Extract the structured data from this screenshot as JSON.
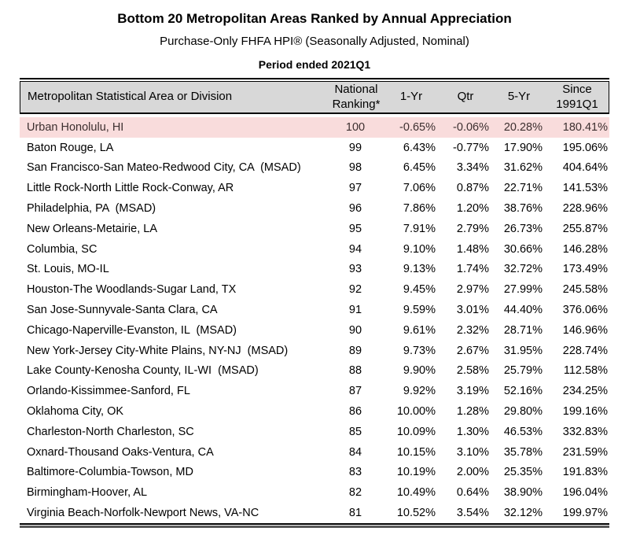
{
  "header": {
    "title": "Bottom 20 Metropolitan Areas Ranked by Annual Appreciation",
    "subtitle": "Purchase-Only FHFA HPI® (Seasonally Adjusted, Nominal)",
    "period": "Period ended 2021Q1"
  },
  "colors": {
    "highlight_bg": "#f9dcdc",
    "header_bg": "#d8d8d8"
  },
  "table": {
    "headers": [
      "Metropolitan Statistical Area or Division",
      "National\nRanking*",
      "1-Yr",
      "Qtr",
      "5-Yr",
      "Since\n1991Q1"
    ],
    "rows": [
      {
        "area": "Urban Honolulu, HI",
        "rank": "100",
        "yr1": "-0.65%",
        "qtr": "-0.06%",
        "yr5": "20.28%",
        "since": "180.41%",
        "highlight": true
      },
      {
        "area": "Baton Rouge, LA",
        "rank": "99",
        "yr1": "6.43%",
        "qtr": "-0.77%",
        "yr5": "17.90%",
        "since": "195.06%",
        "highlight": false
      },
      {
        "area": "San Francisco-San Mateo-Redwood City, CA  (MSAD)",
        "rank": "98",
        "yr1": "6.45%",
        "qtr": "3.34%",
        "yr5": "31.62%",
        "since": "404.64%",
        "highlight": false
      },
      {
        "area": "Little Rock-North Little Rock-Conway, AR",
        "rank": "97",
        "yr1": "7.06%",
        "qtr": "0.87%",
        "yr5": "22.71%",
        "since": "141.53%",
        "highlight": false
      },
      {
        "area": "Philadelphia, PA  (MSAD)",
        "rank": "96",
        "yr1": "7.86%",
        "qtr": "1.20%",
        "yr5": "38.76%",
        "since": "228.96%",
        "highlight": false
      },
      {
        "area": "New Orleans-Metairie, LA",
        "rank": "95",
        "yr1": "7.91%",
        "qtr": "2.79%",
        "yr5": "26.73%",
        "since": "255.87%",
        "highlight": false
      },
      {
        "area": "Columbia, SC",
        "rank": "94",
        "yr1": "9.10%",
        "qtr": "1.48%",
        "yr5": "30.66%",
        "since": "146.28%",
        "highlight": false
      },
      {
        "area": "St. Louis, MO-IL",
        "rank": "93",
        "yr1": "9.13%",
        "qtr": "1.74%",
        "yr5": "32.72%",
        "since": "173.49%",
        "highlight": false
      },
      {
        "area": "Houston-The Woodlands-Sugar Land, TX",
        "rank": "92",
        "yr1": "9.45%",
        "qtr": "2.97%",
        "yr5": "27.99%",
        "since": "245.58%",
        "highlight": false
      },
      {
        "area": "San Jose-Sunnyvale-Santa Clara, CA",
        "rank": "91",
        "yr1": "9.59%",
        "qtr": "3.01%",
        "yr5": "44.40%",
        "since": "376.06%",
        "highlight": false
      },
      {
        "area": "Chicago-Naperville-Evanston, IL  (MSAD)",
        "rank": "90",
        "yr1": "9.61%",
        "qtr": "2.32%",
        "yr5": "28.71%",
        "since": "146.96%",
        "highlight": false
      },
      {
        "area": "New York-Jersey City-White Plains, NY-NJ  (MSAD)",
        "rank": "89",
        "yr1": "9.73%",
        "qtr": "2.67%",
        "yr5": "31.95%",
        "since": "228.74%",
        "highlight": false
      },
      {
        "area": "Lake County-Kenosha County, IL-WI  (MSAD)",
        "rank": "88",
        "yr1": "9.90%",
        "qtr": "2.58%",
        "yr5": "25.79%",
        "since": "112.58%",
        "highlight": false
      },
      {
        "area": "Orlando-Kissimmee-Sanford, FL",
        "rank": "87",
        "yr1": "9.92%",
        "qtr": "3.19%",
        "yr5": "52.16%",
        "since": "234.25%",
        "highlight": false
      },
      {
        "area": "Oklahoma City, OK",
        "rank": "86",
        "yr1": "10.00%",
        "qtr": "1.28%",
        "yr5": "29.80%",
        "since": "199.16%",
        "highlight": false
      },
      {
        "area": "Charleston-North Charleston, SC",
        "rank": "85",
        "yr1": "10.09%",
        "qtr": "1.30%",
        "yr5": "46.53%",
        "since": "332.83%",
        "highlight": false
      },
      {
        "area": "Oxnard-Thousand Oaks-Ventura, CA",
        "rank": "84",
        "yr1": "10.15%",
        "qtr": "3.10%",
        "yr5": "35.78%",
        "since": "231.59%",
        "highlight": false
      },
      {
        "area": "Baltimore-Columbia-Towson, MD",
        "rank": "83",
        "yr1": "10.19%",
        "qtr": "2.00%",
        "yr5": "25.35%",
        "since": "191.83%",
        "highlight": false
      },
      {
        "area": "Birmingham-Hoover, AL",
        "rank": "82",
        "yr1": "10.49%",
        "qtr": "0.64%",
        "yr5": "38.90%",
        "since": "196.04%",
        "highlight": false
      },
      {
        "area": "Virginia Beach-Norfolk-Newport News, VA-NC",
        "rank": "81",
        "yr1": "10.52%",
        "qtr": "3.54%",
        "yr5": "32.12%",
        "since": "199.97%",
        "highlight": false
      }
    ]
  }
}
